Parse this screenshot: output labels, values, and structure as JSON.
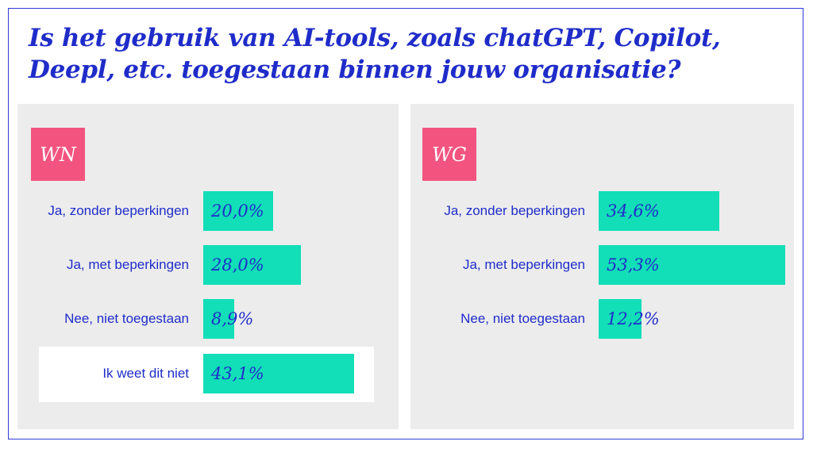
{
  "title": "Is het gebruik van AI-tools, zoals chatGPT, Copilot, Deepl, etc. toegestaan binnen jouw organisatie?",
  "colors": {
    "bar": "#12deb8",
    "badge": "#f2547f",
    "text": "#1f2cc9",
    "panel": "#ececec"
  },
  "chart_data": [
    {
      "type": "bar",
      "orientation": "horizontal",
      "title": "WN",
      "categories": [
        "Ja, zonder beperkingen",
        "Ja, met beperkingen",
        "Nee, niet toegestaan",
        "Ik weet dit niet"
      ],
      "values": [
        20.0,
        28.0,
        8.9,
        43.1
      ],
      "value_labels": [
        "20,0%",
        "28,0%",
        "8,9%",
        "43,1%"
      ],
      "highlighted_category": "Ik weet dit niet"
    },
    {
      "type": "bar",
      "orientation": "horizontal",
      "title": "WG",
      "categories": [
        "Ja, zonder beperkingen",
        "Ja, met beperkingen",
        "Nee, niet toegestaan"
      ],
      "values": [
        34.6,
        53.3,
        12.2
      ],
      "value_labels": [
        "34,6%",
        "53,3%",
        "12,2%"
      ]
    }
  ]
}
